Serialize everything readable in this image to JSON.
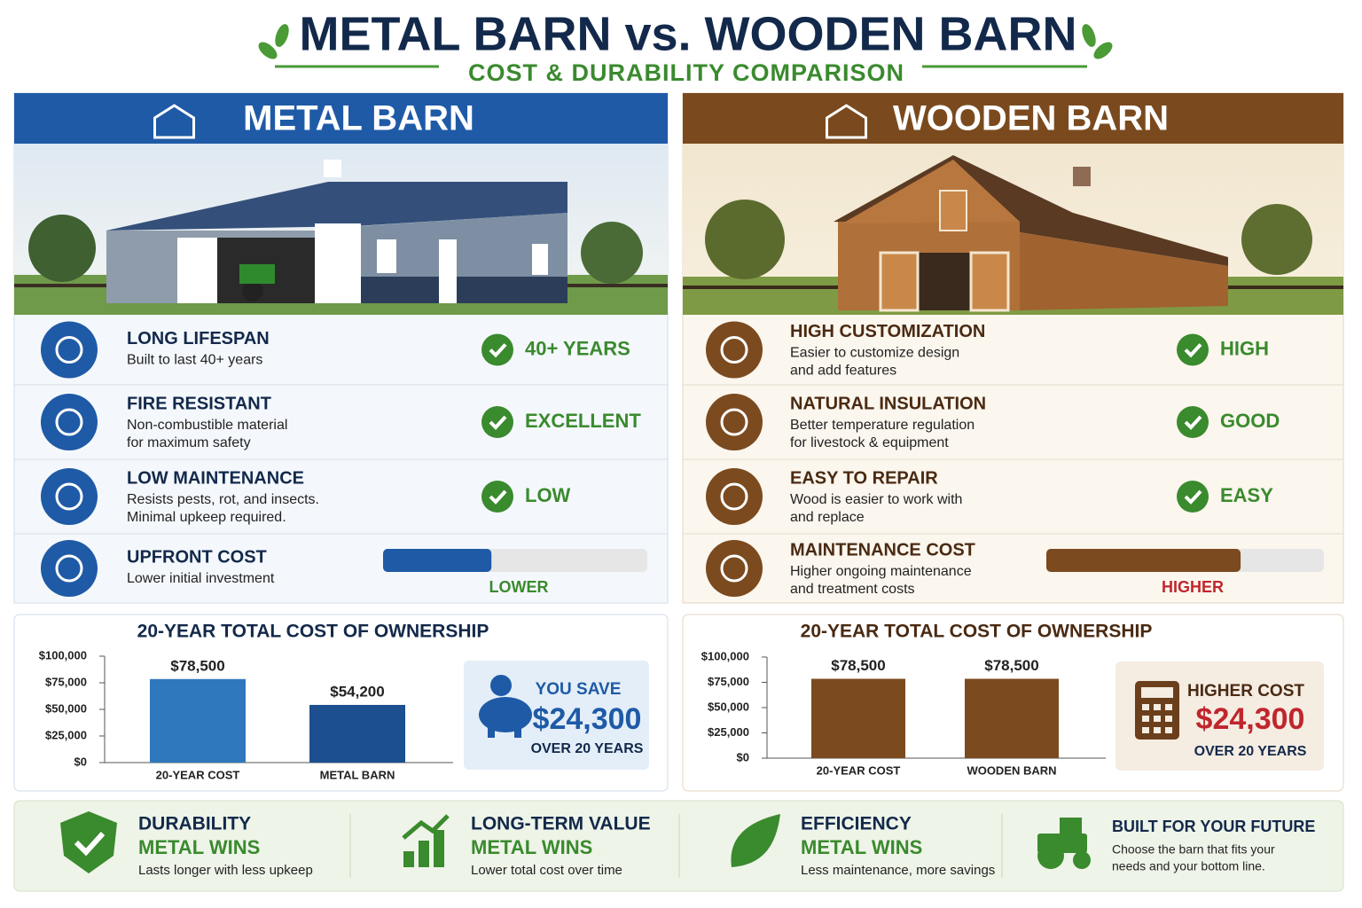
{
  "header": {
    "title": "METAL BARN vs. WOODEN BARN",
    "subtitle": "COST & DURABILITY COMPARISON"
  },
  "panels": [
    {
      "title": "METAL BARN",
      "features": [
        {
          "title": "LONG LIFESPAN",
          "desc": [
            "Built to last 40+ years"
          ],
          "rating": "40+ YEARS"
        },
        {
          "title": "FIRE RESISTANT",
          "desc": [
            "Non-combustible material",
            "for maximum safety"
          ],
          "rating": "EXCELLENT"
        },
        {
          "title": "LOW MAINTENANCE",
          "desc": [
            "Resists pests, rot, and insects.",
            "Minimal upkeep required."
          ],
          "rating": "LOW"
        }
      ],
      "cost": {
        "title": "UPFRONT COST",
        "desc": [
          "Lower initial investment"
        ],
        "level": "LOWER",
        "meter": 41
      },
      "chart_data": {
        "type": "bar",
        "title": "20-YEAR TOTAL COST OF OWNERSHIP",
        "categories": [
          "20-YEAR COST",
          "METAL BARN"
        ],
        "values": [
          78500,
          54200
        ],
        "value_labels": [
          "$78,500",
          "$54,200"
        ],
        "colors": [
          "#2f78bd",
          "#1b4f8f"
        ],
        "ylim": [
          0,
          100000
        ],
        "yticks": [
          {
            "value": 0,
            "label": "$0"
          },
          {
            "value": 25000,
            "label": "$25,000"
          },
          {
            "value": 50000,
            "label": "$50,000"
          },
          {
            "value": 75000,
            "label": "$75,000"
          },
          {
            "value": 100000,
            "label": "$100,000"
          }
        ]
      },
      "summary": {
        "label": "YOU SAVE",
        "amount": "$24,300",
        "note": "OVER 20 YEARS"
      }
    },
    {
      "title": "WOODEN BARN",
      "features": [
        {
          "title": "HIGH CUSTOMIZATION",
          "desc": [
            "Easier to customize design",
            "and add features"
          ],
          "rating": "HIGH"
        },
        {
          "title": "NATURAL INSULATION",
          "desc": [
            "Better temperature regulation",
            "for livestock & equipment"
          ],
          "rating": "GOOD"
        },
        {
          "title": "EASY TO REPAIR",
          "desc": [
            "Wood is easier to work with",
            "and replace"
          ],
          "rating": "EASY"
        }
      ],
      "cost": {
        "title": "MAINTENANCE COST",
        "desc": [
          "Higher ongoing maintenance",
          "and treatment costs"
        ],
        "level": "HIGHER",
        "meter": 70
      },
      "chart_data": {
        "type": "bar",
        "title": "20-YEAR TOTAL COST OF OWNERSHIP",
        "categories": [
          "20-YEAR COST",
          "WOODEN BARN"
        ],
        "values": [
          78500,
          78500
        ],
        "value_labels": [
          "$78,500",
          "$78,500"
        ],
        "colors": [
          "#7b4a1f",
          "#7b4a1f"
        ],
        "ylim": [
          0,
          100000
        ],
        "yticks": [
          {
            "value": 0,
            "label": "$0"
          },
          {
            "value": 25000,
            "label": "$25,000"
          },
          {
            "value": 50000,
            "label": "$50,000"
          },
          {
            "value": 75000,
            "label": "$75,000"
          },
          {
            "value": 100000,
            "label": "$100,000"
          }
        ]
      },
      "summary": {
        "label": "HIGHER COST",
        "amount": "$24,300",
        "note": "OVER 20 YEARS"
      }
    }
  ],
  "footer": [
    {
      "title": "DURABILITY",
      "result": "METAL WINS",
      "desc": [
        "Lasts longer with less upkeep"
      ]
    },
    {
      "title": "LONG-TERM VALUE",
      "result": "METAL WINS",
      "desc": [
        "Lower total cost over time"
      ]
    },
    {
      "title": "EFFICIENCY",
      "result": "METAL WINS",
      "desc": [
        "Less maintenance, more savings"
      ]
    },
    {
      "title": "BUILT FOR YOUR FUTURE",
      "desc": [
        "Choose the barn that fits your",
        "needs and your bottom line."
      ]
    }
  ]
}
